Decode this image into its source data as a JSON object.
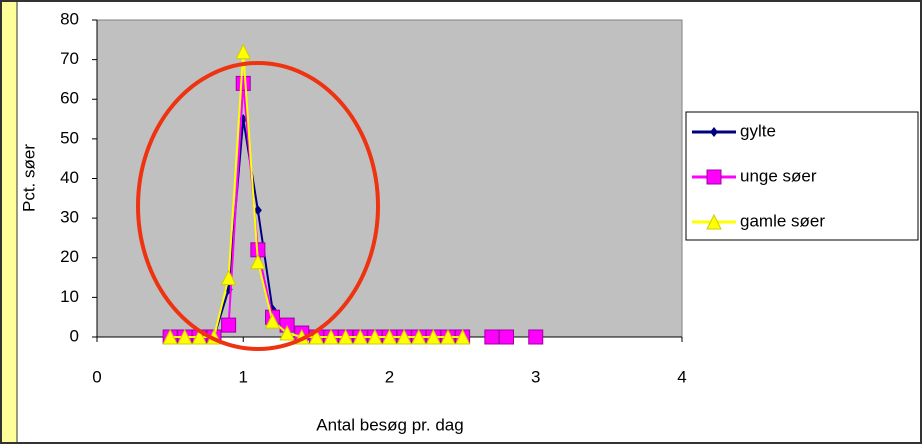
{
  "chart_data": {
    "type": "line",
    "x": [
      0.5,
      0.6,
      0.7,
      0.8,
      0.9,
      1.0,
      1.1,
      1.2,
      1.3,
      1.4,
      1.5,
      1.6,
      1.7,
      1.8,
      1.9,
      2.0,
      2.1,
      2.2,
      2.3,
      2.4,
      2.5,
      2.6,
      2.7,
      2.8,
      2.9,
      3.0
    ],
    "series": [
      {
        "name": "gylte",
        "color": "#000080",
        "marker": "diamond",
        "values": [
          0,
          0,
          0,
          0,
          12,
          55,
          32,
          7,
          2,
          1,
          0,
          0,
          0,
          0,
          0,
          0,
          0,
          0,
          0,
          0,
          0,
          null,
          0,
          0,
          null,
          0
        ]
      },
      {
        "name": "unge søer",
        "color": "#ff00ff",
        "marker": "square",
        "values": [
          0,
          0,
          0,
          0,
          3,
          64,
          22,
          5,
          3,
          1,
          0,
          0,
          0,
          0,
          0,
          0,
          0,
          0,
          0,
          0,
          0,
          null,
          0,
          0,
          null,
          0
        ]
      },
      {
        "name": "gamle søer",
        "color": "#ffff00",
        "marker": "triangle",
        "values": [
          0,
          0,
          0,
          0,
          15,
          72,
          19,
          4,
          1,
          0,
          0,
          0,
          0,
          0,
          0,
          0,
          0,
          0,
          0,
          0,
          0,
          null,
          null,
          null,
          null,
          null
        ]
      }
    ],
    "xlim": [
      0,
      4
    ],
    "xticks": [
      0,
      1,
      2,
      3,
      4
    ],
    "ylim": [
      0,
      80
    ],
    "yticks": [
      0,
      10,
      20,
      30,
      40,
      50,
      60,
      70,
      80
    ],
    "xlabel": "Antal besøg pr. dag",
    "ylabel": "Pct. søer",
    "legend": "right",
    "grid": false
  }
}
